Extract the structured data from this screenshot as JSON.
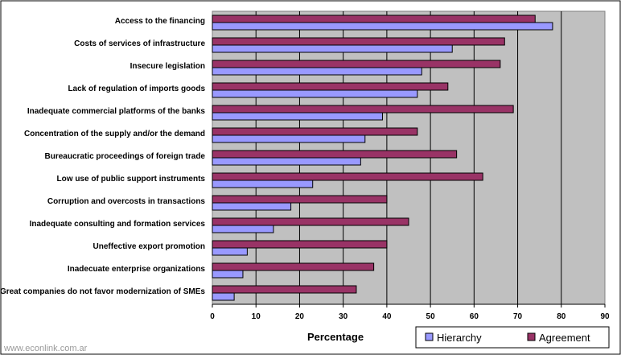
{
  "chart_data": {
    "type": "bar",
    "orientation": "horizontal",
    "categories": [
      "Access to the financing",
      "Costs of services of infrastructure",
      "Insecure legislation",
      "Lack of regulation of imports goods",
      "Inadequate commercial platforms of the  banks",
      "Concentration of the supply and/or the demand",
      "Bureaucratic proceedings of foreign trade",
      "Low use of public support instruments",
      "Corruption and overcosts in transactions",
      "Inadequate consulting and formation services",
      "Uneffective export promotion",
      "Inadecuate enterprise organizations",
      "Great companies do not favor modernization of SMEs"
    ],
    "series": [
      {
        "name": "Agreement",
        "color": "#993366",
        "values": [
          74,
          67,
          66,
          54,
          69,
          47,
          56,
          62,
          40,
          45,
          40,
          37,
          33
        ]
      },
      {
        "name": "Hierarchy",
        "color": "#9999ff",
        "values": [
          78,
          55,
          48,
          47,
          39,
          35,
          34,
          23,
          18,
          14,
          8,
          7,
          5
        ]
      }
    ],
    "xlabel": "Percentage",
    "xlim": [
      0,
      90
    ],
    "xticks": [
      "0",
      "10",
      "20",
      "30",
      "40",
      "50",
      "60",
      "70",
      "80",
      "90"
    ],
    "legend_order": [
      "Hierarchy",
      "Agreement"
    ],
    "legend_position": "bottom-right",
    "plot_background": "#c0c0c0",
    "gridlines": "vertical"
  },
  "watermark": "www.econlink.com.ar"
}
